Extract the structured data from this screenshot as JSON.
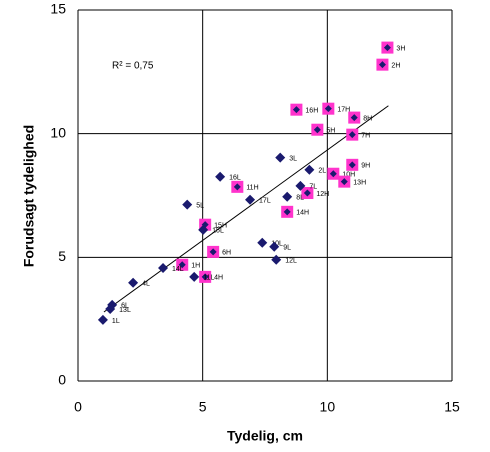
{
  "chart_data": {
    "type": "scatter",
    "xlabel": "Tydelig, cm",
    "ylabel": "Forudsagt tydelighed",
    "annotation": "R² = 0,75",
    "xlim": [
      0,
      15
    ],
    "ylim": [
      0,
      15
    ],
    "xticks": [
      0,
      5,
      10,
      15
    ],
    "yticks": [
      0,
      5,
      10,
      15
    ],
    "grid": true,
    "series": [
      {
        "color": "#ff33cc",
        "marker": "square-diamond",
        "x": [
          12.41,
          12.21,
          8.76,
          10.04,
          11.08,
          9.6,
          11.0,
          11.0,
          10.24,
          10.68,
          9.2,
          6.39,
          8.39,
          5.42,
          4.18,
          5.1,
          5.1
        ],
        "values": [
          13.48,
          12.79,
          10.97,
          11.01,
          10.65,
          10.16,
          9.96,
          8.74,
          8.38,
          8.06,
          7.6,
          7.85,
          6.84,
          5.22,
          4.7,
          4.21,
          6.32
        ],
        "labels": [
          "3H",
          "2H",
          "16H",
          "17H",
          "8H",
          "5H",
          "7H",
          "9H",
          "10H",
          "13H",
          "12H",
          "11H",
          "14H",
          "6H",
          "1H",
          "4H",
          "15H"
        ]
      },
      {
        "color": "#1a1a6e",
        "marker": "diamond",
        "x": [
          8.11,
          5.7,
          4.38,
          6.9,
          8.92,
          8.39,
          9.28,
          5.02,
          7.39,
          7.87,
          7.95,
          2.21,
          3.41,
          4.66,
          1.37,
          1.29,
          1.0
        ],
        "values": [
          9.03,
          8.26,
          7.13,
          7.33,
          7.89,
          7.45,
          8.54,
          6.11,
          5.59,
          5.43,
          4.9,
          3.97,
          4.57,
          4.21,
          3.08,
          2.91,
          2.47
        ],
        "labels": [
          "3L",
          "16L",
          "5L",
          "17L",
          "7L",
          "8L",
          "2L",
          "15L",
          "10L",
          "9L",
          "12L",
          "4L",
          "14L",
          "11L",
          "6L",
          "13L",
          "1L"
        ]
      }
    ],
    "trendline": {
      "color": "#000000",
      "x": [
        1.04,
        12.45
      ],
      "values": [
        2.79,
        11.13
      ]
    }
  }
}
